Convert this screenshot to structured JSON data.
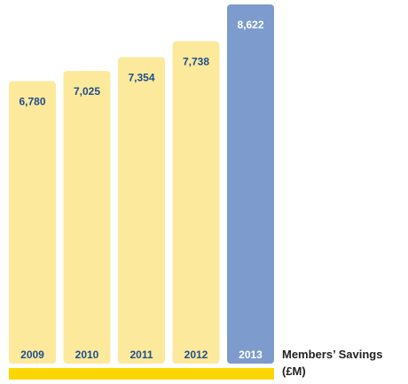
{
  "chart_data": {
    "type": "bar",
    "title": "Members’ Savings (£M)",
    "categories": [
      "2009",
      "2010",
      "2011",
      "2012",
      "2013"
    ],
    "values": [
      6780,
      7025,
      7354,
      7738,
      8622
    ],
    "value_labels": [
      "6,780",
      "7,025",
      "7,354",
      "7,738",
      "8,622"
    ],
    "colors": [
      "#fce99c",
      "#fce99c",
      "#fce99c",
      "#fce99c",
      "#7d9bcc"
    ],
    "label_colors": [
      "#1f4e8c",
      "#1f4e8c",
      "#1f4e8c",
      "#1f4e8c",
      "#ffffff"
    ]
  }
}
